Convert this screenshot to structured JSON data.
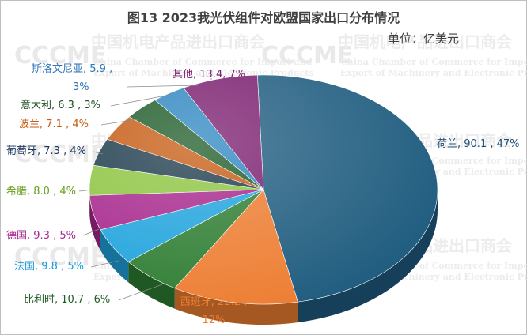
{
  "watermark": {
    "logo": "CCCME",
    "cn": "中国机电产品进出口商会",
    "en_line1": "China Chamber of Commerce for Import and",
    "en_line2": "Export of Machinery and Electronic Products"
  },
  "chart_data": {
    "type": "pie",
    "title": "图13   2023我光伏组件对欧盟国家出口分布情况",
    "unit": "单位：亿美元",
    "slices": [
      {
        "label": "荷兰",
        "value": 90.1,
        "percent": "47%",
        "color": "#1f5c7f",
        "label_color": "#1f4e79"
      },
      {
        "label": "西班牙",
        "value": 22.2,
        "percent": "12%",
        "color": "#ed7d31",
        "label_color": "#ed7d31"
      },
      {
        "label": "比利时",
        "value": 10.7,
        "percent": "6%",
        "color": "#2e7d32",
        "label_color": "#1e5c24"
      },
      {
        "label": "法国",
        "value": 9.8,
        "percent": "5%",
        "color": "#1fa3dc",
        "label_color": "#1a9bd7"
      },
      {
        "label": "德国",
        "value": 9.3,
        "percent": "5%",
        "color": "#a6268c",
        "label_color": "#a6268c"
      },
      {
        "label": "希腊",
        "value": 8.0,
        "percent": "4%",
        "color": "#8cc43f",
        "label_color": "#6aa121"
      },
      {
        "label": "葡萄牙",
        "value": 7.3,
        "percent": "4%",
        "color": "#1c3a4a",
        "label_color": "#1f3864"
      },
      {
        "label": "波兰",
        "value": 7.1,
        "percent": "4%",
        "color": "#c55a11",
        "label_color": "#c55a11"
      },
      {
        "label": "意大利",
        "value": 6.3,
        "percent": "3%",
        "color": "#1d5a27",
        "label_color": "#1d4d22"
      },
      {
        "label": "斯洛文尼亚",
        "value": 5.9,
        "percent": "3%",
        "color": "#2e86c1",
        "label_color": "#2e75b6"
      },
      {
        "label": "其他",
        "value": 13.4,
        "percent": "7%",
        "color": "#7b1e6f",
        "label_color": "#7b1e6f"
      }
    ]
  }
}
